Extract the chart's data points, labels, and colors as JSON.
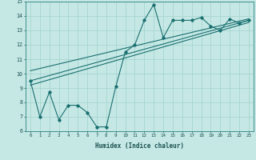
{
  "xlabel": "Humidex (Indice chaleur)",
  "xlim": [
    -0.5,
    23.5
  ],
  "ylim": [
    6,
    15
  ],
  "xtick_labels": [
    "0",
    "1",
    "2",
    "3",
    "4",
    "5",
    "6",
    "7",
    "8",
    "9",
    "10",
    "11",
    "12",
    "13",
    "14",
    "15",
    "16",
    "17",
    "18",
    "19",
    "20",
    "21",
    "22",
    "23"
  ],
  "ytick_labels": [
    "6",
    "7",
    "8",
    "9",
    "10",
    "11",
    "12",
    "13",
    "14",
    "15"
  ],
  "bg_color": "#c5e8e5",
  "grid_color": "#a8d4d0",
  "line_color": "#1a7070",
  "line1_x": [
    0,
    1,
    2,
    3,
    4,
    5,
    6,
    7,
    8,
    9,
    10,
    11,
    12,
    13,
    14,
    15,
    16,
    17,
    18,
    19,
    20,
    21,
    22,
    23
  ],
  "line1_y": [
    9.5,
    7.0,
    8.7,
    6.8,
    7.8,
    7.8,
    7.3,
    6.3,
    6.3,
    9.1,
    11.5,
    12.0,
    13.7,
    14.8,
    12.5,
    13.7,
    13.7,
    13.7,
    13.9,
    13.3,
    13.0,
    13.8,
    13.5,
    13.7
  ],
  "line2_x": [
    0,
    23
  ],
  "line2_y": [
    9.5,
    13.7
  ],
  "line3_x": [
    0,
    23
  ],
  "line3_y": [
    9.2,
    13.55
  ],
  "line4_x": [
    0,
    23
  ],
  "line4_y": [
    10.2,
    13.8
  ]
}
